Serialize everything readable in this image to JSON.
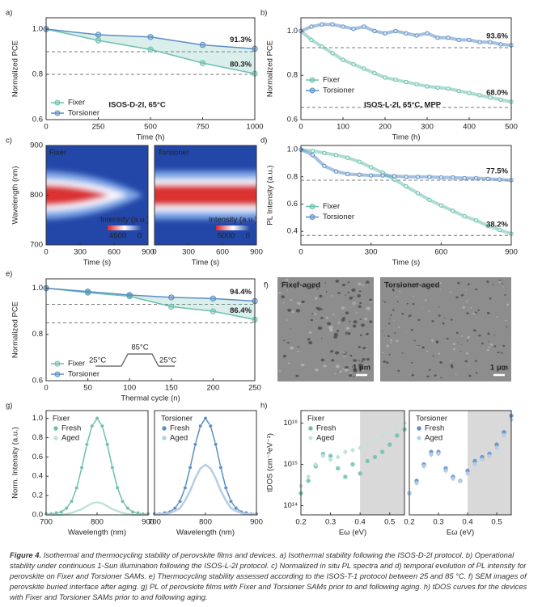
{
  "chart_data": [
    {
      "panel": "a)",
      "type": "line",
      "xlabel": "Time (h)",
      "ylabel": "Normalized PCE",
      "x": [
        0,
        250,
        500,
        750,
        1000
      ],
      "series": [
        {
          "name": "Fixer",
          "color": "#6cbfae",
          "values": [
            1.0,
            0.95,
            0.91,
            0.85,
            0.803
          ]
        },
        {
          "name": "Torsioner",
          "color": "#5b8ec4",
          "values": [
            1.0,
            0.975,
            0.965,
            0.93,
            0.913
          ]
        }
      ],
      "xlim": [
        0,
        1000
      ],
      "xticks": [
        0,
        250,
        500,
        750,
        1000
      ],
      "ylim": [
        0.6,
        1.05
      ],
      "yticks": [
        0.6,
        0.8,
        {
          "value": 1,
          "label": "1.0"
        }
      ],
      "ref_lines": [
        0.9,
        0.8
      ],
      "annotations": [
        "91.3%",
        "80.3%"
      ],
      "note": "ISOS-D-2I, 65°C",
      "legend": "lower left",
      "fill_between": true
    },
    {
      "panel": "b)",
      "type": "line",
      "xlabel": "Time (h)",
      "ylabel": "Normalized PCE",
      "x": [
        0,
        25,
        50,
        75,
        100,
        125,
        150,
        175,
        200,
        225,
        250,
        275,
        300,
        325,
        350,
        375,
        400,
        425,
        450,
        475,
        500
      ],
      "series": [
        {
          "name": "Fixer",
          "color": "#6cbfae",
          "values": [
            1.0,
            0.96,
            0.93,
            0.9,
            0.87,
            0.85,
            0.83,
            0.81,
            0.79,
            0.78,
            0.77,
            0.76,
            0.75,
            0.745,
            0.74,
            0.73,
            0.72,
            0.71,
            0.7,
            0.69,
            0.68
          ]
        },
        {
          "name": "Torsioner",
          "color": "#5b8ec4",
          "values": [
            1.0,
            1.02,
            1.03,
            1.03,
            1.02,
            1.01,
            1.02,
            1.0,
            0.99,
            1.0,
            0.99,
            0.98,
            0.99,
            0.97,
            0.97,
            0.96,
            0.96,
            0.95,
            0.95,
            0.94,
            0.936
          ]
        }
      ],
      "xlim": [
        0,
        500
      ],
      "xticks": [
        0,
        100,
        200,
        300,
        400,
        500
      ],
      "ylim": [
        0.6,
        1.06
      ],
      "yticks": [
        0.6,
        0.8,
        {
          "value": 1,
          "label": "1.0"
        }
      ],
      "ref_lines": [
        0.925,
        0.655
      ],
      "annotations": [
        "93.6%",
        "68.0%"
      ],
      "note": "ISOS-L-2I, 65°C, MPP",
      "legend": "center left"
    },
    {
      "panel": "c)",
      "type": "heatmap",
      "title": "Fixer",
      "xlabel": "Time (s)",
      "ylabel": "Wavelength (nm)",
      "xlim": [
        0,
        900
      ],
      "xticks": [
        0,
        300,
        600,
        900
      ],
      "ylim": [
        700,
        900
      ],
      "yticks": [
        700,
        800,
        900
      ],
      "colorbar": {
        "label": "Intensity (a.u.)",
        "max": 4500,
        "min": 0
      },
      "band": "narrowing"
    },
    {
      "type": "heatmap",
      "title": "Torsioner",
      "xlabel": "Time (s)",
      "xlim": [
        0,
        900
      ],
      "xticks": [
        0,
        300,
        600,
        900
      ],
      "ylim": [
        700,
        900
      ],
      "colorbar": {
        "label": "Intensity (a.u.)",
        "max": 5000,
        "min": 0
      },
      "band": "constant"
    },
    {
      "panel": "d)",
      "type": "line",
      "xlabel": "Time (s)",
      "ylabel": "PL Intensity (a.u.)",
      "x": [
        0,
        50,
        100,
        150,
        200,
        250,
        300,
        350,
        400,
        450,
        500,
        550,
        600,
        650,
        700,
        750,
        800,
        850,
        900
      ],
      "series": [
        {
          "name": "Fixer",
          "color": "#6cbfae",
          "values": [
            1.0,
            0.99,
            0.975,
            0.96,
            0.94,
            0.91,
            0.87,
            0.83,
            0.78,
            0.73,
            0.68,
            0.63,
            0.59,
            0.55,
            0.51,
            0.48,
            0.44,
            0.41,
            0.382
          ]
        },
        {
          "name": "Torsioner",
          "color": "#5b8ec4",
          "values": [
            1.0,
            0.96,
            0.88,
            0.84,
            0.82,
            0.815,
            0.81,
            0.81,
            0.805,
            0.8,
            0.8,
            0.8,
            0.795,
            0.795,
            0.79,
            0.79,
            0.785,
            0.78,
            0.775
          ]
        }
      ],
      "xlim": [
        0,
        900
      ],
      "xticks": [
        0,
        300,
        600,
        900
      ],
      "ylim": [
        0.3,
        1.03
      ],
      "yticks": [
        0.4,
        0.6,
        0.8,
        {
          "value": 1,
          "label": "1.0"
        }
      ],
      "ref_lines": [
        0.775,
        0.37
      ],
      "annotations": [
        "77.5%",
        "38.2%"
      ],
      "legend": "center left"
    },
    {
      "panel": "e)",
      "type": "line",
      "xlabel": "Thermal cycle (n)",
      "ylabel": "Normalized PCE",
      "x": [
        0,
        50,
        100,
        150,
        200,
        250
      ],
      "series": [
        {
          "name": "Fixer",
          "color": "#6cbfae",
          "values": [
            1.0,
            0.98,
            0.965,
            0.92,
            0.9,
            0.864
          ]
        },
        {
          "name": "Torsioner",
          "color": "#5b8ec4",
          "values": [
            1.0,
            0.985,
            0.97,
            0.96,
            0.955,
            0.944
          ]
        }
      ],
      "xlim": [
        0,
        250
      ],
      "xticks": [
        0,
        50,
        100,
        150,
        200,
        250
      ],
      "ylim": [
        0.6,
        1.04
      ],
      "yticks": [
        0.6,
        0.8,
        {
          "value": 1,
          "label": "1.0"
        }
      ],
      "ref_lines": [
        0.93,
        0.85
      ],
      "annotations": [
        "94.4%",
        "86.4%"
      ],
      "legend": "lower left",
      "fill_between": true,
      "inset": [
        "85°C",
        "25°C",
        "25°C"
      ]
    },
    {
      "panel": "g)",
      "type": "spectrum",
      "title": "Fixer",
      "xlabel": "Wavelength (nm)",
      "ylabel": "Norm. Intensity (a.u.)",
      "x": [
        700,
        710,
        720,
        730,
        740,
        750,
        760,
        770,
        780,
        790,
        800,
        810,
        820,
        830,
        840,
        850,
        860,
        870,
        880,
        890,
        900
      ],
      "series": [
        {
          "name": "Fresh",
          "color": "#6cbfae",
          "values": [
            0.01,
            0.01,
            0.02,
            0.03,
            0.07,
            0.14,
            0.28,
            0.49,
            0.73,
            0.92,
            1.0,
            0.92,
            0.73,
            0.49,
            0.28,
            0.14,
            0.07,
            0.03,
            0.02,
            0.01,
            0.01
          ]
        },
        {
          "name": "Aged",
          "color": "#bfe3da",
          "values": [
            0,
            0,
            0,
            0,
            0.01,
            0.02,
            0.04,
            0.06,
            0.09,
            0.12,
            0.13,
            0.12,
            0.09,
            0.06,
            0.04,
            0.02,
            0.01,
            0,
            0,
            0,
            0
          ]
        }
      ],
      "xlim": [
        700,
        900
      ],
      "xticks": [
        700,
        800,
        900
      ],
      "ylim": [
        0,
        1.08
      ],
      "yticks": [
        {
          "value": 0,
          "label": "0.0"
        },
        0.2,
        0.4,
        0.6,
        0.8,
        {
          "value": 1,
          "label": "1.0"
        }
      ],
      "legend": "upper left"
    },
    {
      "type": "spectrum",
      "title": "Torsioner",
      "xlabel": "Wavelength (nm)",
      "x": [
        700,
        710,
        720,
        730,
        740,
        750,
        760,
        770,
        780,
        790,
        800,
        810,
        820,
        830,
        840,
        850,
        860,
        870,
        880,
        890,
        900
      ],
      "series": [
        {
          "name": "Fresh",
          "color": "#5b8ec4",
          "values": [
            0.01,
            0.01,
            0.02,
            0.03,
            0.07,
            0.14,
            0.28,
            0.49,
            0.73,
            0.92,
            1.0,
            0.92,
            0.73,
            0.49,
            0.28,
            0.14,
            0.07,
            0.03,
            0.02,
            0.01,
            0.01
          ]
        },
        {
          "name": "Aged",
          "color": "#b7cde6",
          "values": [
            0.01,
            0.01,
            0.01,
            0.02,
            0.04,
            0.07,
            0.15,
            0.25,
            0.38,
            0.48,
            0.52,
            0.48,
            0.38,
            0.25,
            0.15,
            0.07,
            0.04,
            0.02,
            0.01,
            0.01,
            0.01
          ]
        }
      ],
      "xlim": [
        700,
        900
      ],
      "xticks": [
        700,
        800,
        900
      ],
      "ylim": [
        0,
        1.08
      ],
      "legend": "upper left"
    },
    {
      "panel": "h)",
      "type": "scatter",
      "title": "Fixer",
      "xlabel": "Eω (eV)",
      "ylabel": "tDOS (cm⁻³eV⁻¹)",
      "log_y": true,
      "x": [
        0.2,
        0.225,
        0.25,
        0.275,
        0.3,
        0.325,
        0.35,
        0.375,
        0.4,
        0.425,
        0.45,
        0.475,
        0.5,
        0.525,
        0.55
      ],
      "series": [
        {
          "name": "Fresh",
          "color": "#6cbfae",
          "values": [
            200000000000000.0,
            400000000000000.0,
            900000000000000.0,
            1800000000000000.0,
            1600000000000000.0,
            800000000000000.0,
            500000000000000.0,
            1000000000000000.0,
            600000000000000.0,
            1200000000000000.0,
            1500000000000000.0,
            2000000000000000.0,
            3000000000000000.0,
            5000000000000000.0,
            7000000000000000.0
          ]
        },
        {
          "name": "Aged",
          "color": "#bfe3da",
          "values": [
            300000000000000.0,
            500000000000000.0,
            1000000000000000.0,
            1600000000000000.0,
            1300000000000000.0,
            1500000000000000.0,
            2000000000000000.0,
            2200000000000000.0,
            2500000000000000.0,
            3000000000000000.0,
            4000000000000000.0,
            5000000000000000.0,
            6000000000000000.0,
            8000000000000000.0,
            1e+16
          ]
        }
      ],
      "xlim": [
        0.2,
        0.55
      ],
      "xticks": [
        0.2,
        0.3,
        0.4,
        0.5
      ],
      "ylim": [
        60000000000000.0,
        2e+16
      ],
      "yticks": [
        {
          "value": 100000000000000.0,
          "label": "10¹⁴"
        },
        {
          "value": 1000000000000000.0,
          "label": "10¹⁵"
        },
        {
          "value": 1e+16,
          "label": "10¹⁶"
        }
      ],
      "highlight_x": [
        0.4,
        0.55
      ],
      "legend": "upper left"
    },
    {
      "type": "scatter",
      "title": "Torsioner",
      "xlabel": "Eω (eV)",
      "log_y": true,
      "x": [
        0.2,
        0.225,
        0.25,
        0.275,
        0.3,
        0.325,
        0.35,
        0.375,
        0.4,
        0.425,
        0.45,
        0.475,
        0.5,
        0.525,
        0.55
      ],
      "series": [
        {
          "name": "Fresh",
          "color": "#5b8ec4",
          "values": [
            200000000000000.0,
            400000000000000.0,
            1000000000000000.0,
            2000000000000000.0,
            2000000000000000.0,
            800000000000000.0,
            500000000000000.0,
            400000000000000.0,
            700000000000000.0,
            1200000000000000.0,
            1500000000000000.0,
            1800000000000000.0,
            3000000000000000.0,
            6000000000000000.0,
            1.5e+16
          ]
        },
        {
          "name": "Aged",
          "color": "#b7cde6",
          "values": [
            200000000000000.0,
            350000000000000.0,
            900000000000000.0,
            1700000000000000.0,
            1800000000000000.0,
            700000000000000.0,
            450000000000000.0,
            400000000000000.0,
            600000000000000.0,
            1000000000000000.0,
            1300000000000000.0,
            1600000000000000.0,
            2500000000000000.0,
            5000000000000000.0,
            1.2e+16
          ]
        }
      ],
      "xlim": [
        0.2,
        0.55
      ],
      "xticks": [
        0.2,
        0.3,
        0.4,
        0.5
      ],
      "ylim": [
        60000000000000.0,
        2e+16
      ],
      "highlight_x": [
        0.4,
        0.55
      ],
      "legend": "upper left"
    }
  ],
  "sem": {
    "panel": "f)",
    "images": [
      {
        "label": "Fixer-aged",
        "scale_bar": "1 μm"
      },
      {
        "label": "Torsioner-aged",
        "scale_bar": "1 μm"
      }
    ]
  },
  "caption": {
    "label": "Figure 4.",
    "text": "Isothermal and thermocycling stability of perovskite films and devices. a) Isothermal stability following the ISOS-D-2I protocol. b) Operational stability under continuous 1-Sun illumination following the ISOS-L-2I protocol. c) Normalized in situ PL spectra and d) temporal evolution of PL intensity for perovskite on Fixer and Torsioner SAMs. e) Thermocycling stability assessed according to the ISOS-T-1 protocol between 25 and 85 °C. f) SEM images of perovskite buried interface after aging. g) PL of perovskite films with Fixer and Torsioner SAMs prior to and following aging. h) tDOS curves for the devices with Fixer and Torsioner SAMs prior to and following aging."
  }
}
